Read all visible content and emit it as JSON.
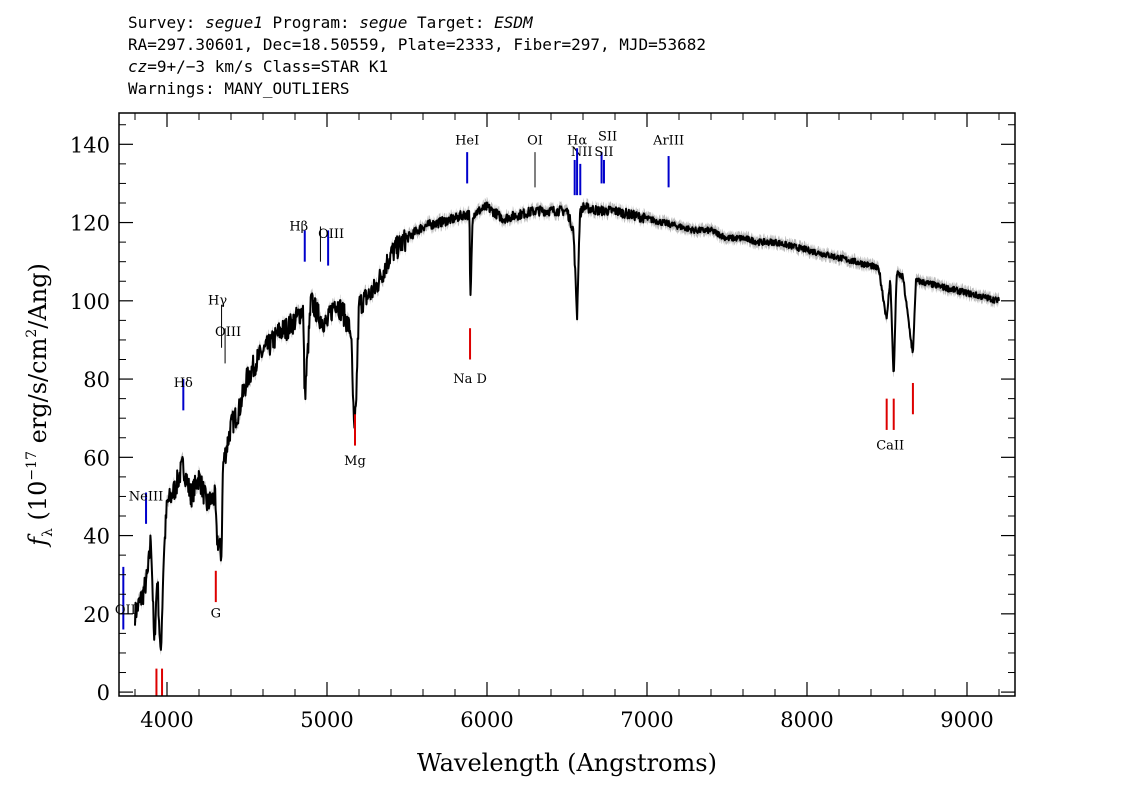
{
  "header": {
    "survey_label": "Survey:",
    "survey": "segue1",
    "program_label": "Program:",
    "program": "segue",
    "target_label": "Target:",
    "target": "ESDM",
    "line2": "RA=297.30601, Dec=18.50559, Plate=2333, Fiber=297, MJD=53682",
    "cz": "cz",
    "line3_rest": "=9+/−3 km/s Class=STAR K1",
    "line4": "Warnings: MANY_OUTLIERS"
  },
  "chart_data": {
    "type": "line",
    "xlabel": "Wavelength (Angstroms)",
    "ylabel": "f_λ (10^-17 erg/s/cm²/Ang)",
    "xlim": [
      3700,
      9300
    ],
    "ylim": [
      -1,
      148
    ],
    "xticks": [
      4000,
      5000,
      6000,
      7000,
      8000,
      9000
    ],
    "yticks": [
      0,
      20,
      40,
      60,
      80,
      100,
      120,
      140
    ],
    "series": [
      {
        "color": "#000000",
        "x": [
          3800,
          3850,
          3880,
          3900,
          3920,
          3940,
          3960,
          3980,
          4000,
          4050,
          4100,
          4150,
          4200,
          4250,
          4300,
          4310,
          4340,
          4350,
          4400,
          4450,
          4500,
          4550,
          4600,
          4650,
          4700,
          4750,
          4800,
          4850,
          4861,
          4900,
          4950,
          5000,
          5050,
          5100,
          5150,
          5170,
          5180,
          5200,
          5300,
          5400,
          5500,
          5600,
          5700,
          5800,
          5850,
          5890,
          5896,
          5910,
          5950,
          6000,
          6100,
          6200,
          6300,
          6400,
          6500,
          6540,
          6563,
          6580,
          6600,
          6700,
          6800,
          6900,
          7000,
          7100,
          7200,
          7300,
          7400,
          7500,
          7600,
          7700,
          7800,
          7900,
          8000,
          8100,
          8200,
          8300,
          8400,
          8450,
          8498,
          8520,
          8542,
          8560,
          8600,
          8662,
          8680,
          8700,
          8800,
          8900,
          9000,
          9100,
          9200
        ],
        "values": [
          20,
          25,
          30,
          40,
          12,
          30,
          8,
          35,
          48,
          52,
          58,
          50,
          55,
          48,
          50,
          40,
          35,
          58,
          68,
          72,
          80,
          84,
          87,
          89,
          92,
          93,
          95,
          98,
          75,
          100,
          96,
          94,
          100,
          97,
          92,
          65,
          72,
          99,
          103,
          112,
          116,
          119,
          120,
          121,
          122,
          122,
          99,
          122,
          123,
          124,
          121,
          122,
          123,
          123,
          123,
          118,
          96,
          122,
          124,
          123,
          123,
          122,
          121,
          120,
          119,
          118,
          118,
          116,
          116,
          115,
          115,
          114,
          113,
          112,
          111,
          110,
          109,
          108,
          95,
          106,
          80,
          107,
          106,
          86,
          105,
          105,
          104,
          103,
          102,
          101,
          100
        ]
      }
    ],
    "emission_lines": [
      {
        "label": "OII",
        "wavelength": 3727
      },
      {
        "label": "NeIII",
        "wavelength": 3869
      },
      {
        "label": "Hδ",
        "wavelength": 4102
      },
      {
        "label": "Hγ",
        "wavelength": 4341
      },
      {
        "label": "OIII",
        "wavelength": 4363
      },
      {
        "label": "Hβ",
        "wavelength": 4861
      },
      {
        "label": "OIII",
        "wavelength": 4959
      },
      {
        "label": "OIII",
        "wavelength": 5007
      },
      {
        "label": "HeI",
        "wavelength": 5876
      },
      {
        "label": "OI",
        "wavelength": 6300
      },
      {
        "label": "NII",
        "wavelength": 6548
      },
      {
        "label": "Hα",
        "wavelength": 6563
      },
      {
        "label": "NII",
        "wavelength": 6583
      },
      {
        "label": "SII",
        "wavelength": 6716
      },
      {
        "label": "SII",
        "wavelength": 6731
      },
      {
        "label": "ArIII",
        "wavelength": 7135
      }
    ],
    "absorption_lines": [
      {
        "label": "",
        "wavelength": 3934
      },
      {
        "label": "",
        "wavelength": 3969
      },
      {
        "label": "G",
        "wavelength": 4305
      },
      {
        "label": "Mg",
        "wavelength": 5175
      },
      {
        "label": "Na D",
        "wavelength": 5894
      },
      {
        "label": "CaII",
        "wavelength": 8498
      },
      {
        "label": "CaII",
        "wavelength": 8542
      },
      {
        "label": "",
        "wavelength": 8662
      }
    ],
    "colors": {
      "spectrum": "#000000",
      "error_band": "#bbbbbb",
      "emission": "#0000cc",
      "absorption": "#dd0000"
    }
  }
}
